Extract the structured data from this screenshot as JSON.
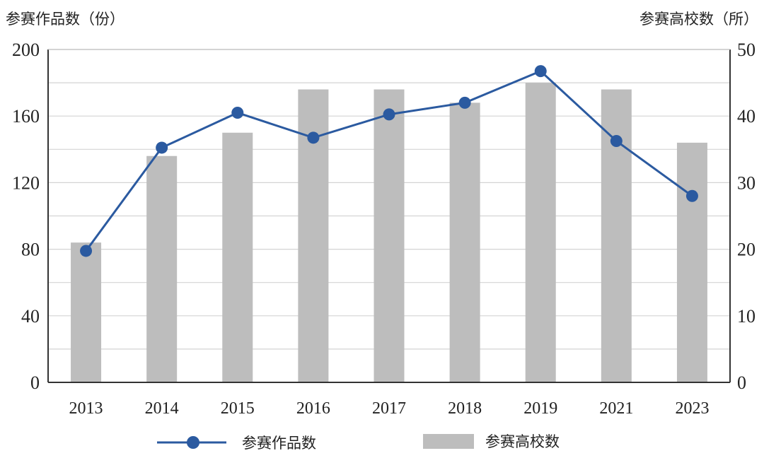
{
  "chart_data": {
    "type": "bar+line",
    "categories": [
      "2013",
      "2014",
      "2015",
      "2016",
      "2017",
      "2018",
      "2019",
      "2021",
      "2023"
    ],
    "series": [
      {
        "name": "参赛作品数",
        "type": "line",
        "axis": "left",
        "color": "#2b5aa0",
        "values": [
          79,
          141,
          162,
          147,
          161,
          168,
          187,
          145,
          112
        ]
      },
      {
        "name": "参赛高校数",
        "type": "bar",
        "axis": "right",
        "color": "#bdbdbd",
        "values": [
          21,
          34,
          37.5,
          44,
          44,
          42,
          45,
          44,
          36
        ]
      }
    ],
    "ylabel_left": "参赛作品数（份）",
    "ylabel_right": "参赛高校数（所）",
    "ylim_left": [
      0,
      200
    ],
    "ylim_right": [
      0,
      50
    ],
    "yticks_left": [
      "0",
      "40",
      "80",
      "120",
      "160",
      "200"
    ],
    "yticks_right": [
      "0",
      "10",
      "20",
      "30",
      "40",
      "50"
    ],
    "grid": true,
    "legend_position": "bottom"
  }
}
